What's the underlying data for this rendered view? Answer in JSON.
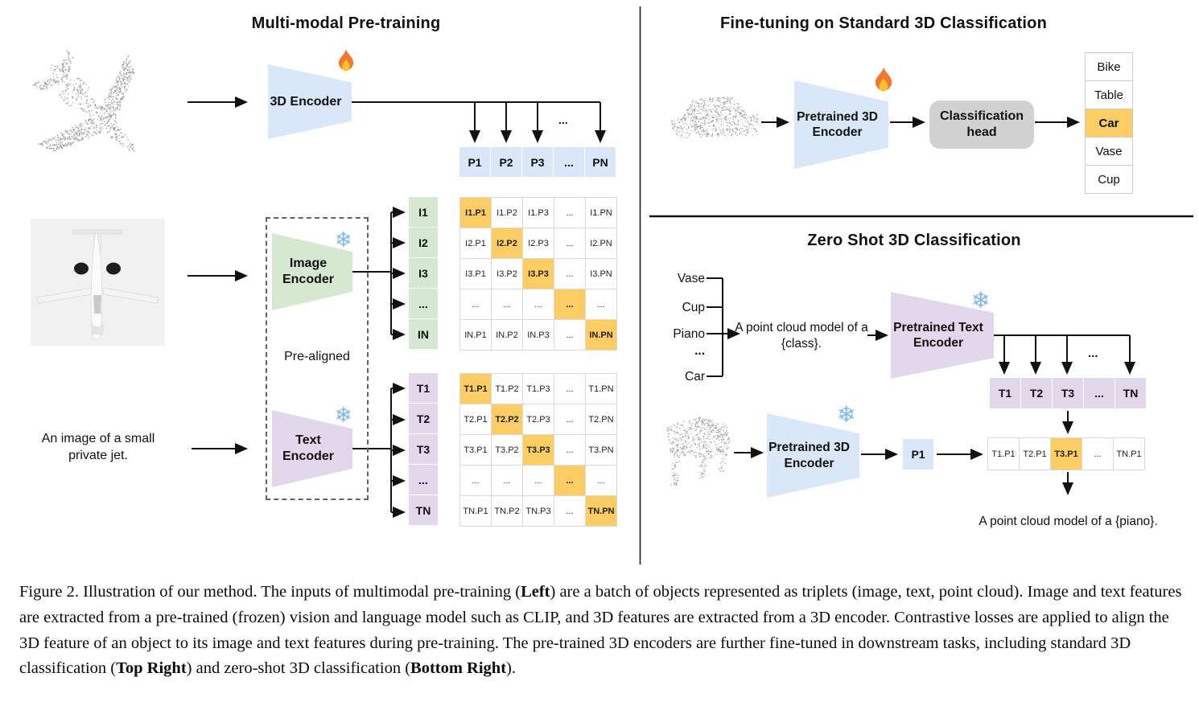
{
  "colors": {
    "blue": "#d9e7f9",
    "green": "#d7e8d2",
    "purple": "#e3d7eb",
    "hl": "#fbcd64",
    "head": "#d2d2d2"
  },
  "icons": {
    "fire": "fire-icon",
    "snowflake": "snowflake-icon",
    "snowflake_glyph": "❄"
  },
  "panels": {
    "pretraining": {
      "title": "Multi-modal Pre-training",
      "encoder_3d_label": "3D Encoder",
      "image_encoder_label": "Image Encoder",
      "text_encoder_label": "Text Encoder",
      "prealigned_label": "Pre-aligned",
      "text_input": "An image of a small private jet.",
      "branch_ellipsis": "...",
      "p_row": [
        "P1",
        "P2",
        "P3",
        "...",
        "PN"
      ],
      "i_rows": [
        "I1",
        "I2",
        "I3",
        "...",
        "IN"
      ],
      "t_rows": [
        "T1",
        "T2",
        "T3",
        "...",
        "TN"
      ],
      "image_matrix": {
        "cells": [
          [
            "I1.P1",
            "I1.P2",
            "I1.P3",
            "...",
            "I1.PN"
          ],
          [
            "I2.P1",
            "I2.P2",
            "I2.P3",
            "...",
            "I2.PN"
          ],
          [
            "I3.P1",
            "I3.P2",
            "I3.P3",
            "...",
            "I3.PN"
          ],
          [
            "...",
            "...",
            "...",
            "...",
            "..."
          ],
          [
            "IN.P1",
            "IN.P2",
            "IN.P3",
            "...",
            "IN.PN"
          ]
        ],
        "highlight": "diagonal"
      },
      "text_matrix": {
        "cells": [
          [
            "T1.P1",
            "T1.P2",
            "T1.P3",
            "...",
            "T1.PN"
          ],
          [
            "T2.P1",
            "T2.P2",
            "T2.P3",
            "...",
            "T2.PN"
          ],
          [
            "T3.P1",
            "T3.P2",
            "T3.P3",
            "...",
            "T3.PN"
          ],
          [
            "...",
            "...",
            "...",
            "...",
            "..."
          ],
          [
            "TN.P1",
            "TN.P2",
            "TN.P3",
            "...",
            "TN.PN"
          ]
        ],
        "highlight": "diagonal"
      }
    },
    "finetuning": {
      "title": "Fine-tuning on Standard 3D Classification",
      "encoder_label": "Pretrained 3D Encoder",
      "head_label": "Classification head",
      "classes": [
        "Bike",
        "Table",
        "Car",
        "Vase",
        "Cup"
      ],
      "highlight_index": 2
    },
    "zeroshot": {
      "title": "Zero Shot 3D Classification",
      "class_words": [
        "Vase",
        "Cup",
        "Piano",
        "...",
        "Car"
      ],
      "prompt": "A point cloud model of a {class}.",
      "text_encoder_label": "Pretrained Text Encoder",
      "encoder_3d_label": "Pretrained 3D Encoder",
      "branch_ellipsis": "...",
      "t_row": [
        "T1",
        "T2",
        "T3",
        "...",
        "TN"
      ],
      "p_box": "P1",
      "tp_row": [
        "T1.P1",
        "T2.P1",
        "T3.P1",
        "...",
        "TN.P1"
      ],
      "tp_highlight_index": 2,
      "result_prompt": "A point cloud model of a {piano}."
    }
  },
  "caption": {
    "label": "Figure 2.",
    "segments": [
      {
        "text": "Figure 2. Illustration of our method. The inputs of multimodal pre-training (",
        "bold": false
      },
      {
        "text": "Left",
        "bold": true
      },
      {
        "text": ") are a batch of objects represented as triplets (image, text, point cloud). Image and text features are extracted from a pre-trained (frozen) vision and language model such as CLIP, and 3D features are extracted from a 3D encoder. Contrastive losses are applied to align the 3D feature of an object to its image and text features during pre-training. The pre-trained 3D encoders are further fine-tuned in downstream tasks, including standard 3D classification (",
        "bold": false
      },
      {
        "text": "Top Right",
        "bold": true
      },
      {
        "text": ") and zero-shot 3D classification (",
        "bold": false
      },
      {
        "text": "Bottom Right",
        "bold": true
      },
      {
        "text": ").",
        "bold": false
      }
    ]
  }
}
